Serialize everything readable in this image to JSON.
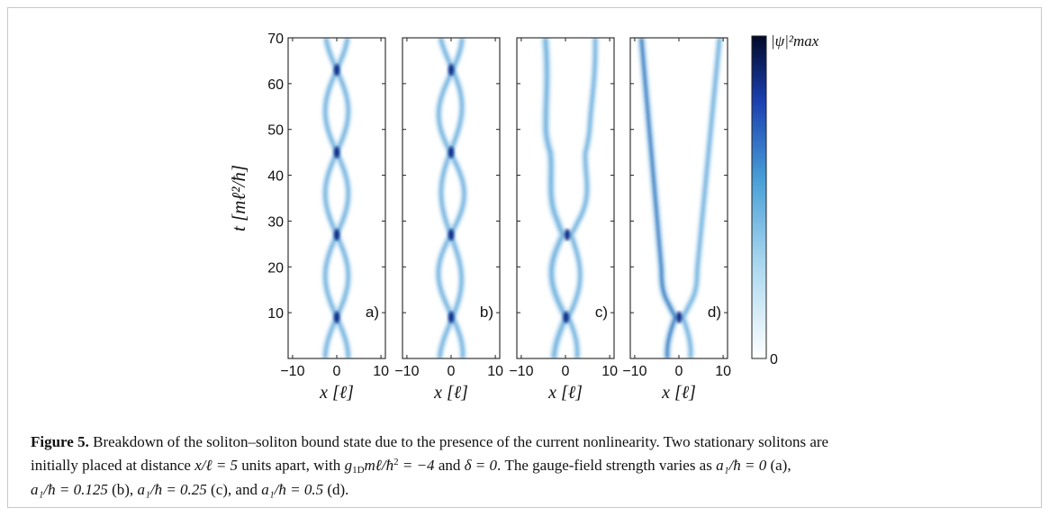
{
  "figure": {
    "y_axis_label": "t [mℓ²/ħ]",
    "x_axis_label": "x [ℓ]",
    "colorbar_top_label": "|ψ|²max",
    "colorbar_bottom_label": "0"
  },
  "chart_data": [
    {
      "type": "heatmap",
      "panel_label": "a)",
      "x_ticks": [
        "−10",
        "0",
        "10"
      ],
      "y_ticks": [
        "10",
        "20",
        "30",
        "40",
        "50",
        "60",
        "70"
      ],
      "xlim": [
        -11,
        11
      ],
      "ylim": [
        0,
        70
      ],
      "a1_over_hbar": 0,
      "collision_times": [
        9,
        27,
        45,
        63
      ],
      "drift": [
        0,
        0
      ]
    },
    {
      "type": "heatmap",
      "panel_label": "b)",
      "x_ticks": [
        "−10",
        "0",
        "10"
      ],
      "y_ticks": [],
      "xlim": [
        -11,
        11
      ],
      "ylim": [
        0,
        70
      ],
      "a1_over_hbar": 0.125,
      "collision_times": [
        9,
        27,
        45,
        63
      ],
      "drift": [
        0,
        0
      ]
    },
    {
      "type": "heatmap",
      "panel_label": "c)",
      "x_ticks": [
        "−10",
        "0",
        "10"
      ],
      "y_ticks": [],
      "xlim": [
        -11,
        11
      ],
      "ylim": [
        0,
        70
      ],
      "a1_over_hbar": 0.25,
      "collision_times": [
        9,
        27
      ],
      "drift": [
        -0.02,
        0.05
      ]
    },
    {
      "type": "heatmap",
      "panel_label": "d)",
      "x_ticks": [
        "−10",
        "0",
        "10"
      ],
      "y_ticks": [],
      "xlim": [
        -11,
        11
      ],
      "ylim": [
        0,
        70
      ],
      "a1_over_hbar": 0.5,
      "collision_times": [
        9
      ],
      "drift": [
        -0.09,
        0.1
      ]
    }
  ],
  "caption": {
    "label": "Figure 5.",
    "line1": "Breakdown of the soliton–soliton bound state due to the presence of the current nonlinearity. Two stationary solitons are",
    "line2a": "initially placed at distance",
    "dist_expr": "x/ℓ = 5",
    "line2b": "units apart, with",
    "g_expr": "g",
    "g_sub": "1D",
    "g_rest": "mℓ/ħ",
    "g_sup": "2",
    "g_val": " = −4",
    "line2c": "and",
    "delta_expr": "δ = 0",
    "line2d": ". The gauge-field strength varies as",
    "a_expr_0": "a₁/ħ = 0",
    "a_lab_0": "(a),",
    "a_expr_1": "a₁/ħ = 0.125",
    "a_lab_1": "(b),",
    "a_expr_2": "a₁/ħ = 0.25",
    "a_lab_2": "(c), and",
    "a_expr_3": "a₁/ħ = 0.5",
    "a_lab_3": "(d)."
  }
}
